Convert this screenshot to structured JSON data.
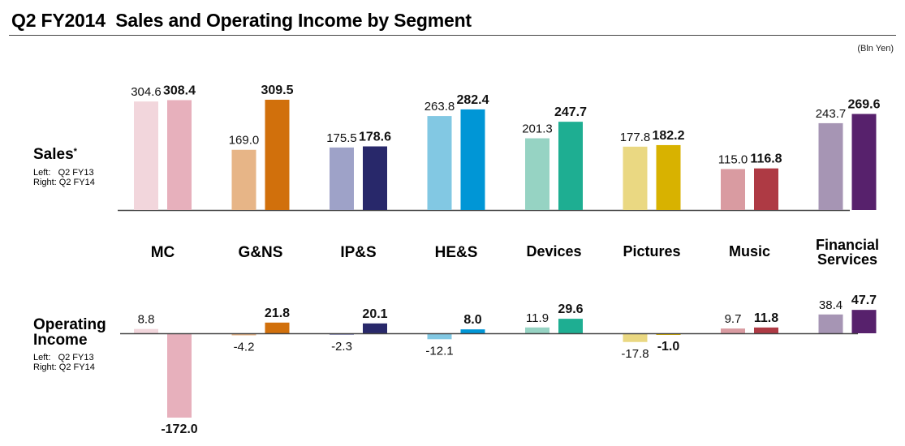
{
  "header": {
    "title": "Q2 FY2014  Sales and Operating Income by Segment",
    "unit": "(Bln Yen)"
  },
  "sales_section": {
    "title": "Sales",
    "footnote_marker": "*",
    "legend_left": "Left:   Q2 FY13",
    "legend_right": "Right: Q2 FY14"
  },
  "oi_section": {
    "title_line1": "Operating",
    "title_line2": "Income",
    "legend_left": "Left:   Q2 FY13",
    "legend_right": "Right: Q2 FY14"
  },
  "chart_data": [
    {
      "type": "bar",
      "title": "Sales",
      "ylabel": "Bln Yen",
      "categories": [
        "MC",
        "G&NS",
        "IP&S",
        "HE&S",
        "Devices",
        "Pictures",
        "Music",
        "Financial Services"
      ],
      "series": [
        {
          "name": "Q2 FY13",
          "values": [
            304.6,
            169.0,
            175.5,
            263.8,
            201.3,
            177.8,
            115.0,
            243.7
          ],
          "labels": [
            "304.6",
            "169.0",
            "175.5",
            "263.8",
            "201.3",
            "177.8",
            "115.0",
            "243.7"
          ]
        },
        {
          "name": "Q2 FY14",
          "values": [
            308.4,
            309.5,
            178.6,
            282.4,
            247.7,
            182.2,
            116.8,
            269.6
          ],
          "labels": [
            "308.4",
            "309.5",
            "178.6",
            "282.4",
            "247.7",
            "182.2",
            "116.8",
            "269.6"
          ]
        }
      ],
      "ylim": [
        0,
        310
      ],
      "grid": false
    },
    {
      "type": "bar",
      "title": "Operating Income",
      "ylabel": "Bln Yen",
      "categories": [
        "MC",
        "G&NS",
        "IP&S",
        "HE&S",
        "Devices",
        "Pictures",
        "Music",
        "Financial Services"
      ],
      "series": [
        {
          "name": "Q2 FY13",
          "values": [
            8.8,
            -4.2,
            -2.3,
            -12.1,
            11.9,
            -17.8,
            9.7,
            38.4
          ],
          "labels": [
            "8.8",
            "-4.2",
            "-2.3",
            "-12.1",
            "11.9",
            "-17.8",
            "9.7",
            "38.4"
          ]
        },
        {
          "name": "Q2 FY14",
          "values": [
            -172.0,
            21.8,
            20.1,
            8.0,
            29.6,
            -1.0,
            11.8,
            47.7
          ],
          "labels": [
            "-172.0",
            "21.8",
            "20.1",
            "8.0",
            "29.6",
            "-1.0",
            "11.8",
            "47.7"
          ]
        }
      ],
      "ylim": [
        -172,
        48
      ],
      "grid": false
    }
  ],
  "category_labels": [
    {
      "line1": "MC",
      "line2": ""
    },
    {
      "line1": "G&NS",
      "line2": ""
    },
    {
      "line1": "IP&S",
      "line2": ""
    },
    {
      "line1": "HE&S",
      "line2": ""
    },
    {
      "line1": "Devices",
      "line2": ""
    },
    {
      "line1": "Pictures",
      "line2": ""
    },
    {
      "line1": "Music",
      "line2": ""
    },
    {
      "line1": "Financial",
      "line2": "Services"
    }
  ],
  "colors": {
    "fy13": [
      "#f2d6dc",
      "#e7b587",
      "#9ea2c8",
      "#82c8e3",
      "#96d3c3",
      "#ead882",
      "#d99ba1",
      "#a695b4"
    ],
    "fy14": [
      "#e7b0bc",
      "#d1700c",
      "#28286a",
      "#0096d6",
      "#1eae92",
      "#d8b200",
      "#ae3a44",
      "#57216c"
    ],
    "axis": "#444444"
  }
}
